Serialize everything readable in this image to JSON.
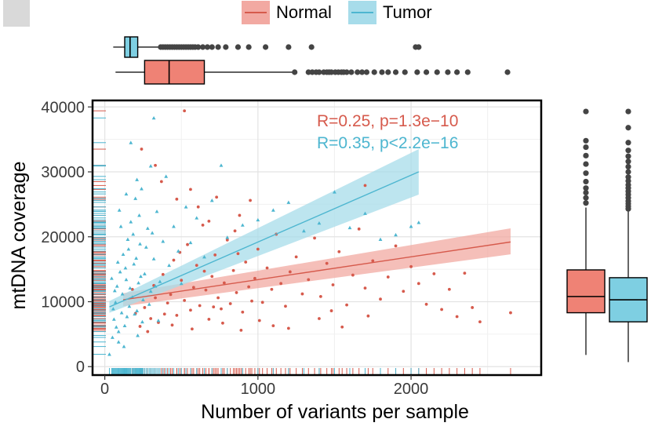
{
  "legend": {
    "items": [
      {
        "label": "Normal",
        "color": "#e06b5e",
        "fill": "#f2a9a2"
      },
      {
        "label": "Tumor",
        "color": "#5bbcd6",
        "fill": "#a7dcea"
      }
    ]
  },
  "chart_data": {
    "type": "scatter",
    "title": "",
    "xlabel": "Number of variants per sample",
    "ylabel": "mtDNA coverage",
    "xlim": [
      -80,
      2850
    ],
    "ylim": [
      -1300,
      41000
    ],
    "x_ticks": [
      0,
      1000,
      2000
    ],
    "x_tick_labels": [
      "0",
      "1000",
      "2000"
    ],
    "y_ticks": [
      0,
      10000,
      20000,
      30000,
      40000
    ],
    "y_tick_labels": [
      "0",
      "10000",
      "20000",
      "30000",
      "40000"
    ],
    "grid": true,
    "annotations": [
      {
        "text": "R=0.25,  p=1.3e−10",
        "series": "Normal",
        "color": "#d65a4c"
      },
      {
        "text": "R=0.35,  p<2.2e−16",
        "series": "Tumor",
        "color": "#4db6d0"
      }
    ],
    "series": [
      {
        "name": "Normal",
        "color": "#d65a4c",
        "marker": "circle",
        "regression": {
          "x": [
            120,
            2650
          ],
          "y": [
            10300,
            19200
          ],
          "ci_low_start": 9300,
          "ci_high_start": 11300,
          "ci_low_end": 17300,
          "ci_high_end": 21300
        },
        "points": [
          [
            200,
            8200
          ],
          [
            260,
            9100
          ],
          [
            300,
            7400
          ],
          [
            320,
            12500
          ],
          [
            350,
            6800
          ],
          [
            380,
            14200
          ],
          [
            410,
            9800
          ],
          [
            430,
            11100
          ],
          [
            450,
            16400
          ],
          [
            470,
            7900
          ],
          [
            500,
            13300
          ],
          [
            520,
            10200
          ],
          [
            540,
            18800
          ],
          [
            560,
            8700
          ],
          [
            580,
            12200
          ],
          [
            600,
            15600
          ],
          [
            620,
            9400
          ],
          [
            640,
            21800
          ],
          [
            660,
            11800
          ],
          [
            680,
            7300
          ],
          [
            700,
            13900
          ],
          [
            720,
            17200
          ],
          [
            740,
            10600
          ],
          [
            760,
            8900
          ],
          [
            780,
            12900
          ],
          [
            800,
            19500
          ],
          [
            820,
            9700
          ],
          [
            840,
            14800
          ],
          [
            860,
            11400
          ],
          [
            880,
            23300
          ],
          [
            900,
            8400
          ],
          [
            920,
            16100
          ],
          [
            940,
            12300
          ],
          [
            960,
            10100
          ],
          [
            980,
            13600
          ],
          [
            1000,
            18100
          ],
          [
            1030,
            9900
          ],
          [
            1060,
            15200
          ],
          [
            1090,
            11900
          ],
          [
            1120,
            20400
          ],
          [
            1150,
            12800
          ],
          [
            1180,
            9300
          ],
          [
            1210,
            14600
          ],
          [
            1250,
            16900
          ],
          [
            1290,
            11200
          ],
          [
            1330,
            13400
          ],
          [
            1370,
            19800
          ],
          [
            1410,
            10800
          ],
          [
            1450,
            15900
          ],
          [
            1490,
            12600
          ],
          [
            1530,
            17700
          ],
          [
            1580,
            9500
          ],
          [
            1620,
            14100
          ],
          [
            1660,
            21200
          ],
          [
            1700,
            12100
          ],
          [
            1750,
            16300
          ],
          [
            1800,
            10400
          ],
          [
            1850,
            13800
          ],
          [
            1900,
            18600
          ],
          [
            1950,
            11600
          ],
          [
            2000,
            15400
          ],
          [
            2050,
            12800
          ],
          [
            2100,
            9600
          ],
          [
            2150,
            14300
          ],
          [
            2200,
            8800
          ],
          [
            2250,
            11900
          ],
          [
            2300,
            7700
          ],
          [
            2350,
            14400
          ],
          [
            2400,
            9100
          ],
          [
            2450,
            6900
          ],
          [
            2650,
            8300
          ],
          [
            240,
            33500
          ],
          [
            330,
            31000
          ],
          [
            370,
            28500
          ],
          [
            470,
            25800
          ],
          [
            560,
            27300
          ],
          [
            610,
            24600
          ],
          [
            680,
            22400
          ],
          [
            730,
            26100
          ],
          [
            520,
            39400
          ],
          [
            850,
            20900
          ],
          [
            1700,
            27900
          ],
          [
            950,
            25600
          ],
          [
            180,
            11900
          ],
          [
            230,
            6200
          ],
          [
            280,
            5400
          ],
          [
            330,
            10600
          ],
          [
            390,
            8100
          ],
          [
            440,
            6400
          ],
          [
            490,
            17600
          ],
          [
            570,
            5800
          ],
          [
            650,
            14700
          ],
          [
            710,
            9200
          ],
          [
            770,
            6700
          ],
          [
            870,
            17400
          ],
          [
            890,
            5600
          ],
          [
            1010,
            7100
          ],
          [
            1100,
            6300
          ],
          [
            1200,
            5900
          ],
          [
            1400,
            7400
          ],
          [
            1480,
            8600
          ],
          [
            1550,
            6100
          ],
          [
            1720,
            7800
          ]
        ]
      },
      {
        "name": "Tumor",
        "color": "#4db6d0",
        "marker": "triangle",
        "regression": {
          "x": [
            30,
            2050
          ],
          "y": [
            9200,
            30000
          ],
          "ci_low_start": 8300,
          "ci_high_start": 10100,
          "ci_low_end": 26500,
          "ci_high_end": 33500
        },
        "points": [
          [
            30,
            1900
          ],
          [
            50,
            4500
          ],
          [
            60,
            7300
          ],
          [
            70,
            9900
          ],
          [
            80,
            12400
          ],
          [
            90,
            5400
          ],
          [
            100,
            14600
          ],
          [
            110,
            8300
          ],
          [
            115,
            11200
          ],
          [
            120,
            17300
          ],
          [
            130,
            6300
          ],
          [
            140,
            13400
          ],
          [
            150,
            19600
          ],
          [
            160,
            9300
          ],
          [
            170,
            22300
          ],
          [
            180,
            10700
          ],
          [
            190,
            15800
          ],
          [
            200,
            25900
          ],
          [
            210,
            8600
          ],
          [
            220,
            12900
          ],
          [
            230,
            18900
          ],
          [
            240,
            27400
          ],
          [
            250,
            10300
          ],
          [
            260,
            14300
          ],
          [
            280,
            21300
          ],
          [
            300,
            11600
          ],
          [
            320,
            16600
          ],
          [
            340,
            23900
          ],
          [
            360,
            13100
          ],
          [
            380,
            19300
          ],
          [
            400,
            29300
          ],
          [
            420,
            15600
          ],
          [
            450,
            21600
          ],
          [
            480,
            17800
          ],
          [
            500,
            12800
          ],
          [
            530,
            24600
          ],
          [
            560,
            19100
          ],
          [
            600,
            22900
          ],
          [
            650,
            16900
          ],
          [
            700,
            25600
          ],
          [
            760,
            31000
          ],
          [
            800,
            19900
          ],
          [
            900,
            21800
          ],
          [
            1000,
            22600
          ],
          [
            1100,
            24100
          ],
          [
            1200,
            25300
          ],
          [
            1300,
            20900
          ],
          [
            1400,
            22100
          ],
          [
            1500,
            26900
          ],
          [
            1600,
            21400
          ],
          [
            1700,
            23600
          ],
          [
            1800,
            19600
          ],
          [
            1900,
            20300
          ],
          [
            2000,
            21600
          ],
          [
            2050,
            22200
          ],
          [
            170,
            34500
          ],
          [
            320,
            38300
          ],
          [
            300,
            30900
          ],
          [
            210,
            28800
          ],
          [
            140,
            26600
          ],
          [
            90,
            3800
          ],
          [
            75,
            6100
          ],
          [
            65,
            11700
          ],
          [
            55,
            8900
          ],
          [
            45,
            13600
          ],
          [
            85,
            16100
          ],
          [
            105,
            21600
          ],
          [
            95,
            24100
          ],
          [
            125,
            3100
          ],
          [
            135,
            15200
          ],
          [
            145,
            7700
          ],
          [
            155,
            18100
          ],
          [
            165,
            12100
          ],
          [
            185,
            20400
          ],
          [
            195,
            8100
          ],
          [
            205,
            16700
          ],
          [
            215,
            4800
          ],
          [
            225,
            23300
          ],
          [
            235,
            13900
          ],
          [
            245,
            6900
          ],
          [
            270,
            18400
          ],
          [
            290,
            9600
          ],
          [
            310,
            20600
          ],
          [
            330,
            12400
          ],
          [
            350,
            7100
          ]
        ]
      }
    ],
    "marginal_top": {
      "Tumor": {
        "q1": 130,
        "median": 165,
        "q3": 215,
        "whisker_low": 55,
        "whisker_high": 350,
        "outliers": [
          365,
          380,
          395,
          410,
          425,
          440,
          455,
          470,
          485,
          500,
          515,
          530,
          545,
          560,
          575,
          590,
          610,
          640,
          670,
          700,
          740,
          790,
          870,
          940,
          1050,
          1200,
          1350,
          2030,
          2050
        ]
      },
      "Normal": {
        "q1": 260,
        "median": 420,
        "q3": 650,
        "whisker_low": 70,
        "whisker_high": 1230,
        "outliers": [
          1240,
          1330,
          1355,
          1380,
          1400,
          1430,
          1450,
          1465,
          1480,
          1505,
          1525,
          1545,
          1560,
          1580,
          1610,
          1650,
          1680,
          1710,
          1760,
          1810,
          1850,
          1900,
          1960,
          2040,
          2100,
          2170,
          2240,
          2300,
          2370,
          2630
        ]
      }
    },
    "marginal_right": {
      "Normal": {
        "q1": 8300,
        "median": 10800,
        "q3": 14900,
        "whisker_low": 1800,
        "whisker_high": 24500,
        "outliers": [
          25200,
          26000,
          26800,
          27500,
          28500,
          29800,
          31200,
          32500,
          33800,
          34800,
          39300
        ]
      },
      "Tumor": {
        "q1": 6900,
        "median": 10300,
        "q3": 13700,
        "whisker_low": 700,
        "whisker_high": 24000,
        "outliers": [
          24300,
          24700,
          25100,
          25500,
          26000,
          26500,
          27000,
          27500,
          28000,
          28600,
          29200,
          30000,
          30800,
          31600,
          32400,
          33300,
          34500,
          36800,
          39300
        ]
      }
    }
  }
}
